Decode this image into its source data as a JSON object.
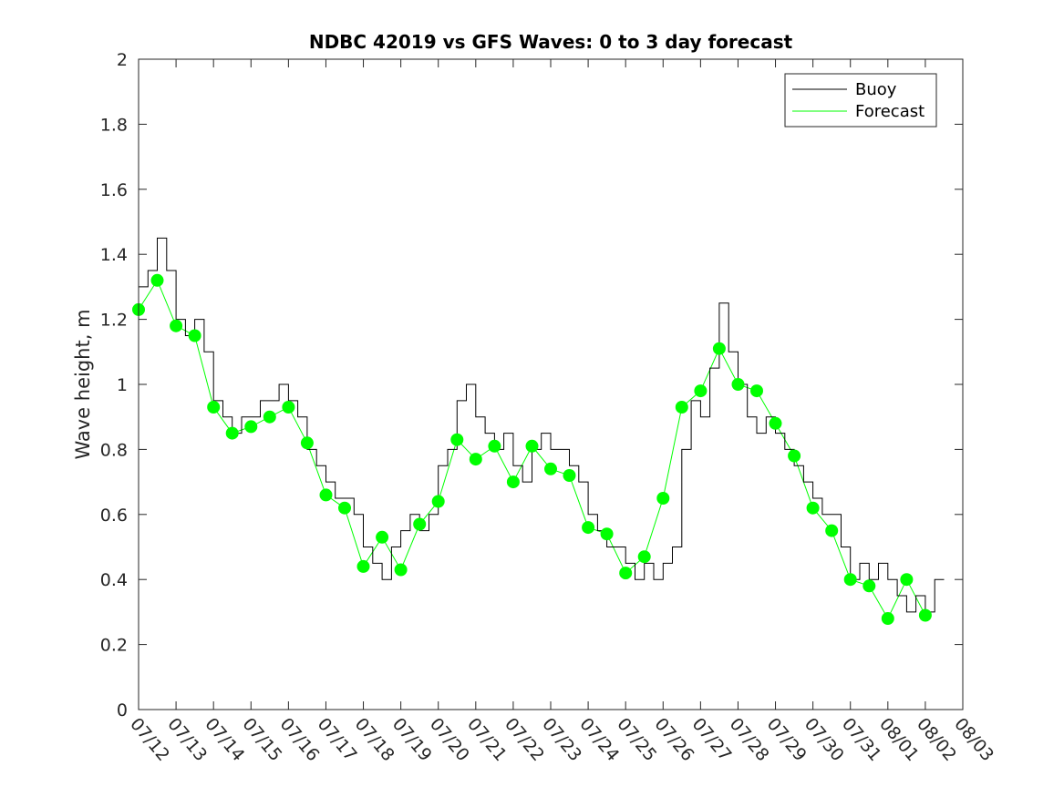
{
  "chart_data": {
    "type": "line",
    "title": "NDBC 42019 vs GFS Waves: 0 to 3 day forecast",
    "xlabel": "",
    "ylabel": "Wave height, m",
    "ylim": [
      0,
      2
    ],
    "yticks": [
      0,
      0.2,
      0.4,
      0.6,
      0.8,
      1,
      1.2,
      1.4,
      1.6,
      1.8,
      2
    ],
    "ytick_labels": [
      "0",
      "0.2",
      "0.4",
      "0.6",
      "0.8",
      "1",
      "1.2",
      "1.4",
      "1.6",
      "1.8",
      "2"
    ],
    "xlim": [
      "07/12",
      "08/03"
    ],
    "xtick_labels": [
      "07/12",
      "07/13",
      "07/14",
      "07/15",
      "07/16",
      "07/17",
      "07/18",
      "07/19",
      "07/20",
      "07/21",
      "07/22",
      "07/23",
      "07/24",
      "07/25",
      "07/26",
      "07/27",
      "07/28",
      "07/29",
      "07/30",
      "07/31",
      "08/01",
      "08/02",
      "08/03"
    ],
    "grid": false,
    "legend": {
      "placement": "top-right",
      "entries": [
        {
          "label": "Buoy",
          "color": "#000000"
        },
        {
          "label": "Forecast",
          "color": "#00ff00"
        }
      ]
    },
    "series": [
      {
        "name": "Buoy",
        "color": "#000000",
        "x": [
          "07/12 00:00",
          "07/12 06:00",
          "07/12 12:00",
          "07/12 18:00",
          "07/13 00:00",
          "07/13 06:00",
          "07/13 12:00",
          "07/13 18:00",
          "07/14 00:00",
          "07/14 06:00",
          "07/14 12:00",
          "07/14 18:00",
          "07/15 00:00",
          "07/15 06:00",
          "07/15 12:00",
          "07/15 18:00",
          "07/16 00:00",
          "07/16 06:00",
          "07/16 12:00",
          "07/16 18:00",
          "07/17 00:00",
          "07/17 06:00",
          "07/17 12:00",
          "07/17 18:00",
          "07/18 00:00",
          "07/18 06:00",
          "07/18 12:00",
          "07/18 18:00",
          "07/19 00:00",
          "07/19 06:00",
          "07/19 12:00",
          "07/19 18:00",
          "07/20 00:00",
          "07/20 06:00",
          "07/20 12:00",
          "07/20 18:00",
          "07/21 00:00",
          "07/21 06:00",
          "07/21 12:00",
          "07/21 18:00",
          "07/22 00:00",
          "07/22 06:00",
          "07/22 12:00",
          "07/22 18:00",
          "07/23 00:00",
          "07/23 06:00",
          "07/23 12:00",
          "07/23 18:00",
          "07/24 00:00",
          "07/24 06:00",
          "07/24 12:00",
          "07/24 18:00",
          "07/25 00:00",
          "07/25 06:00",
          "07/25 12:00",
          "07/25 18:00",
          "07/26 00:00",
          "07/26 06:00",
          "07/26 12:00",
          "07/26 18:00",
          "07/27 00:00",
          "07/27 06:00",
          "07/27 12:00",
          "07/27 18:00",
          "07/28 00:00",
          "07/28 06:00",
          "07/28 12:00",
          "07/28 18:00",
          "07/29 00:00",
          "07/29 06:00",
          "07/29 12:00",
          "07/29 18:00",
          "07/30 00:00",
          "07/30 06:00",
          "07/30 12:00",
          "07/30 18:00",
          "07/31 00:00",
          "07/31 06:00",
          "07/31 12:00",
          "07/31 18:00",
          "08/01 00:00",
          "08/01 06:00",
          "08/01 12:00",
          "08/01 18:00",
          "08/02 00:00",
          "08/02 06:00"
        ],
        "values": [
          1.3,
          1.35,
          1.45,
          1.35,
          1.2,
          1.15,
          1.2,
          1.1,
          0.95,
          0.9,
          0.85,
          0.9,
          0.9,
          0.95,
          0.95,
          1.0,
          0.95,
          0.9,
          0.8,
          0.75,
          0.7,
          0.65,
          0.65,
          0.6,
          0.5,
          0.45,
          0.4,
          0.5,
          0.55,
          0.6,
          0.55,
          0.6,
          0.75,
          0.8,
          0.95,
          1.0,
          0.9,
          0.85,
          0.8,
          0.85,
          0.75,
          0.7,
          0.8,
          0.85,
          0.8,
          0.8,
          0.75,
          0.7,
          0.6,
          0.55,
          0.5,
          0.5,
          0.45,
          0.4,
          0.45,
          0.4,
          0.45,
          0.5,
          0.8,
          0.95,
          0.9,
          1.05,
          1.25,
          1.1,
          1.0,
          0.9,
          0.85,
          0.9,
          0.85,
          0.8,
          0.75,
          0.7,
          0.65,
          0.6,
          0.6,
          0.5,
          0.4,
          0.45,
          0.4,
          0.45,
          0.4,
          0.35,
          0.3,
          0.35,
          0.3,
          0.4
        ]
      },
      {
        "name": "Forecast",
        "color": "#00ff00",
        "x": [
          "07/12 00:00",
          "07/12 12:00",
          "07/13 00:00",
          "07/13 12:00",
          "07/14 00:00",
          "07/14 12:00",
          "07/15 00:00",
          "07/15 12:00",
          "07/16 00:00",
          "07/16 12:00",
          "07/17 00:00",
          "07/17 12:00",
          "07/18 00:00",
          "07/18 12:00",
          "07/19 00:00",
          "07/19 12:00",
          "07/20 00:00",
          "07/20 12:00",
          "07/21 00:00",
          "07/21 12:00",
          "07/22 00:00",
          "07/22 12:00",
          "07/23 00:00",
          "07/23 12:00",
          "07/24 00:00",
          "07/24 12:00",
          "07/25 00:00",
          "07/25 12:00",
          "07/26 00:00",
          "07/26 12:00",
          "07/27 00:00",
          "07/27 12:00",
          "07/28 00:00",
          "07/28 12:00",
          "07/29 00:00",
          "07/29 12:00",
          "07/30 00:00",
          "07/30 12:00",
          "07/31 00:00",
          "07/31 12:00",
          "08/01 00:00",
          "08/01 12:00",
          "08/02 00:00"
        ],
        "values": [
          1.23,
          1.32,
          1.18,
          1.15,
          0.93,
          0.85,
          0.87,
          0.9,
          0.93,
          0.82,
          0.66,
          0.62,
          0.44,
          0.53,
          0.43,
          0.57,
          0.64,
          0.83,
          0.77,
          0.81,
          0.7,
          0.81,
          0.74,
          0.72,
          0.56,
          0.54,
          0.42,
          0.47,
          0.65,
          0.93,
          0.98,
          1.11,
          1.0,
          0.98,
          0.88,
          0.78,
          0.62,
          0.55,
          0.4,
          0.38,
          0.28,
          0.4,
          0.29
        ]
      }
    ]
  }
}
